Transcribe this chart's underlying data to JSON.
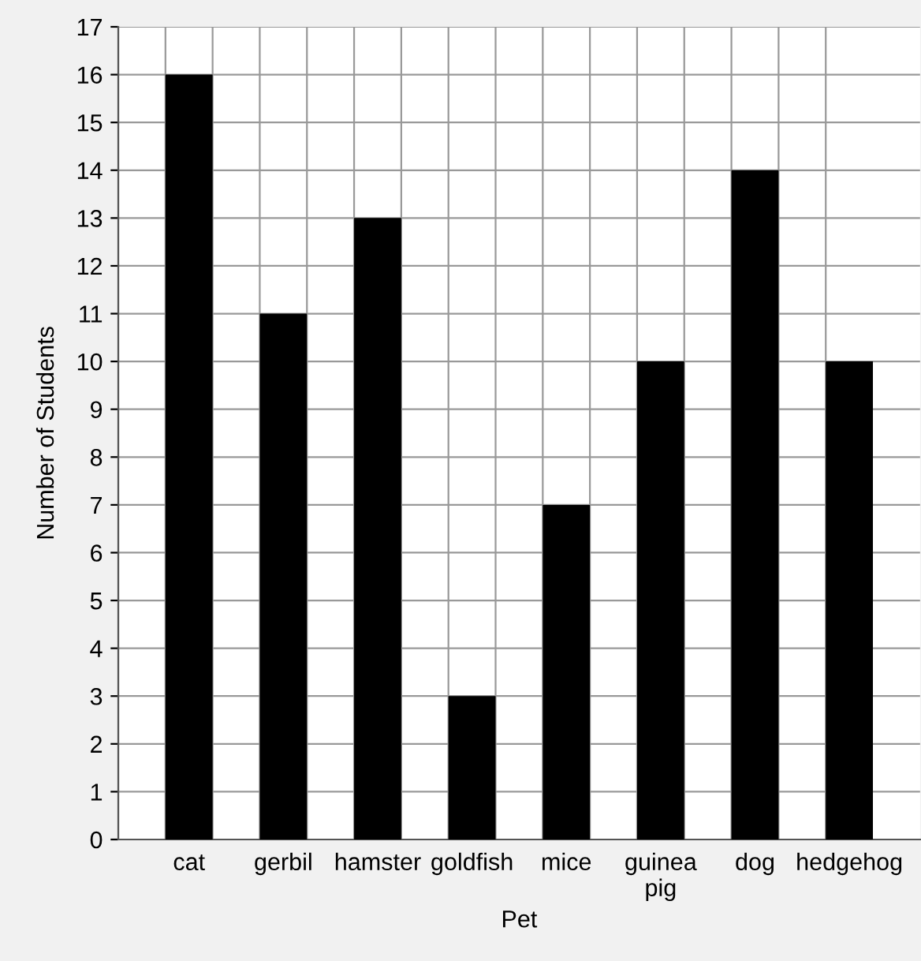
{
  "chart_data": {
    "type": "bar",
    "xlabel": "Pet",
    "ylabel": "Number of Students",
    "categories": [
      "cat",
      "gerbil",
      "hamster",
      "goldfish",
      "mice",
      "guinea pig",
      "dog",
      "hedgehog"
    ],
    "values": [
      16,
      11,
      13,
      3,
      7,
      10,
      14,
      10
    ],
    "color": "#000000",
    "ylim": [
      0,
      17
    ],
    "yticks": [
      0,
      1,
      2,
      3,
      4,
      5,
      6,
      7,
      8,
      9,
      10,
      11,
      12,
      13,
      14,
      15,
      16,
      17
    ],
    "grid": true
  }
}
